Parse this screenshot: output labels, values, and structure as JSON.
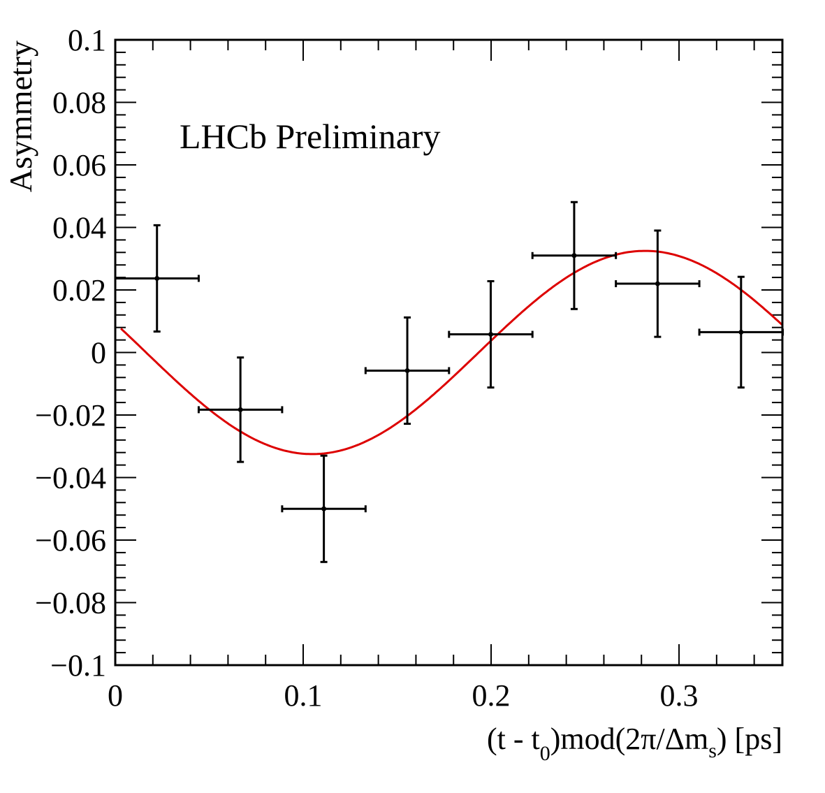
{
  "chart_data": {
    "type": "scatter",
    "annotation": "LHCb Preliminary",
    "xlabel": {
      "pre": "(t - t",
      "sub0": "0",
      "mid": ")mod(2π/Δm",
      "sub1": "s",
      "post": ") [ps]"
    },
    "ylabel": "Asymmetry",
    "xlim": [
      0,
      0.355
    ],
    "ylim": [
      -0.1,
      0.1
    ],
    "x_ticks": [
      "0",
      "0.1",
      "0.2",
      "0.3"
    ],
    "x_tick_values": [
      0,
      0.1,
      0.2,
      0.3
    ],
    "y_ticks": [
      "0.1",
      "0.08",
      "0.06",
      "0.04",
      "0.02",
      "0",
      "−0.02",
      "−0.04",
      "−0.06",
      "−0.08",
      "−0.1"
    ],
    "y_tick_values": [
      0.1,
      0.08,
      0.06,
      0.04,
      0.02,
      0,
      -0.02,
      -0.04,
      -0.06,
      -0.08,
      -0.1
    ],
    "series": [
      {
        "kind": "data_points",
        "color": "#000000",
        "points": [
          {
            "x": 0.0222,
            "y": 0.0237,
            "xerr": 0.0222,
            "yerr": 0.017
          },
          {
            "x": 0.0666,
            "y": -0.0183,
            "xerr": 0.0222,
            "yerr": 0.0167
          },
          {
            "x": 0.111,
            "y": -0.05,
            "xerr": 0.0222,
            "yerr": 0.017
          },
          {
            "x": 0.1554,
            "y": -0.0058,
            "xerr": 0.0222,
            "yerr": 0.017
          },
          {
            "x": 0.1998,
            "y": 0.0058,
            "xerr": 0.0222,
            "yerr": 0.017
          },
          {
            "x": 0.2442,
            "y": 0.031,
            "xerr": 0.0222,
            "yerr": 0.0171
          },
          {
            "x": 0.2886,
            "y": 0.022,
            "xerr": 0.0222,
            "yerr": 0.017
          },
          {
            "x": 0.333,
            "y": 0.0065,
            "xerr": 0.0222,
            "yerr": 0.0177
          }
        ]
      },
      {
        "kind": "fit_curve",
        "color": "#dd0000",
        "amplitude": 0.0325,
        "period": 0.354,
        "phase_x": 0.0164,
        "sign": -1
      }
    ],
    "grid": false,
    "legend": "none",
    "colors": {
      "data": "#000000",
      "fit": "#dd0000",
      "axes": "#000000"
    }
  }
}
